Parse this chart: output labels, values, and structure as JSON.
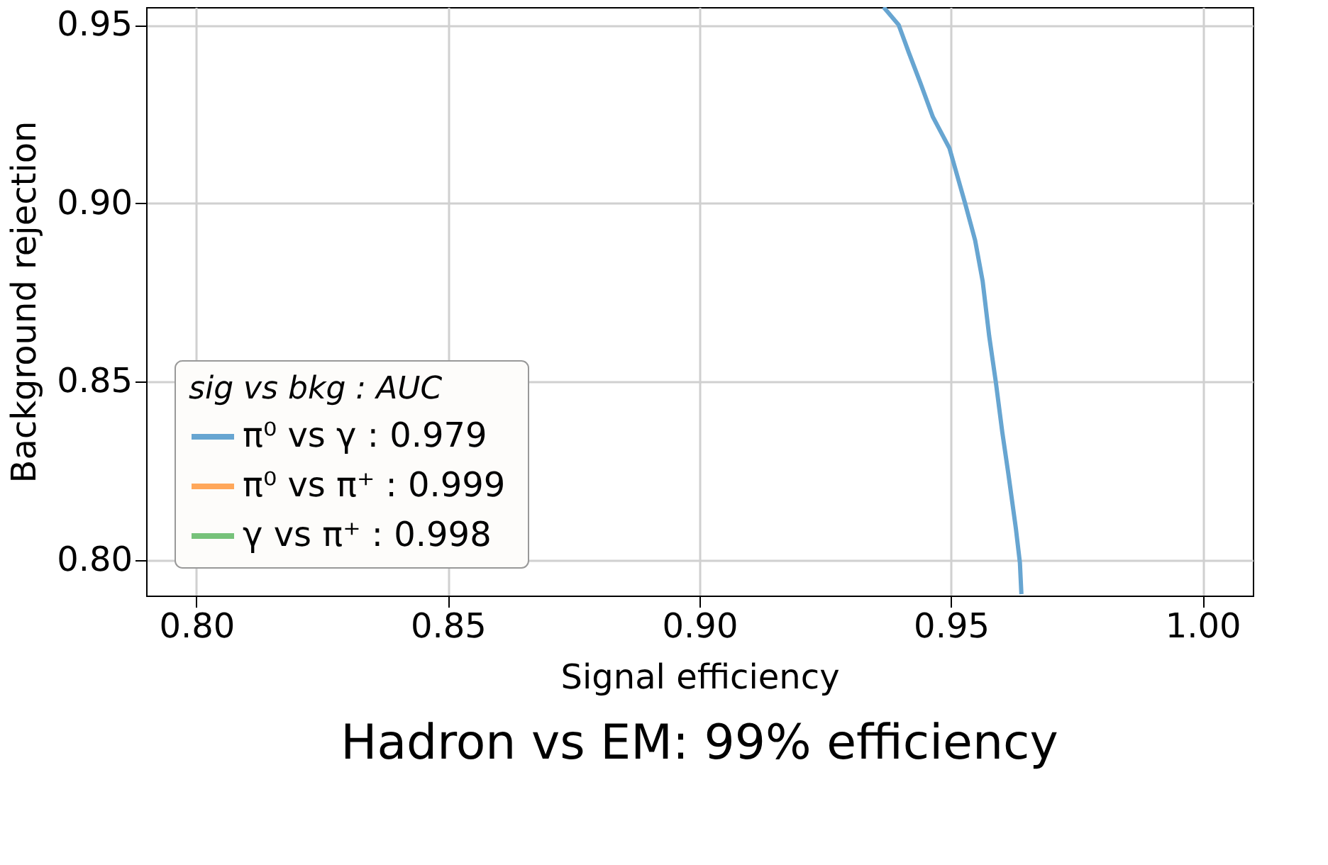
{
  "chart_data": {
    "type": "line",
    "title": "Hadron vs EM: 99% efficiency",
    "xlabel": "Signal efficiency",
    "ylabel": "Background rejection",
    "legend_title": "sig vs bkg :  AUC",
    "xlim": [
      0.79,
      1.01
    ],
    "xticks": [
      {
        "value": 0.8,
        "label": "0.80"
      },
      0.85,
      {
        "value": 0.9,
        "label": "0.90"
      },
      0.95,
      {
        "value": 1.0,
        "label": "1.00"
      }
    ],
    "ylim": [
      0.79,
      0.955
    ],
    "yticks": [
      {
        "value": 0.8,
        "label": "0.80"
      },
      0.85,
      {
        "value": 0.9,
        "label": "0.90"
      },
      0.95
    ],
    "grid": true,
    "legend": "bottom left",
    "marker": "none",
    "line_style": "solid",
    "series": [
      {
        "name": "π⁰ vs γ   : 0.979",
        "color": "#67a5d1",
        "x": [
          0.9366,
          0.9396,
          0.9416,
          0.9439,
          0.9464,
          0.9497,
          0.9528,
          0.9548,
          0.9563,
          0.9576,
          0.9589,
          0.9602,
          0.9614,
          0.9629,
          0.9637,
          0.964
        ],
        "values": [
          0.955,
          0.95,
          0.9423,
          0.9338,
          0.9242,
          0.9154,
          0.9,
          0.8896,
          0.8781,
          0.8627,
          0.85,
          0.8358,
          0.8242,
          0.8088,
          0.7992,
          0.7904
        ]
      },
      {
        "name": "π⁰ vs π⁺ : 0.999",
        "color": "#ffa75a"
      },
      {
        "name": "γ   vs π⁺ : 0.998",
        "color": "#76c27a"
      }
    ]
  }
}
